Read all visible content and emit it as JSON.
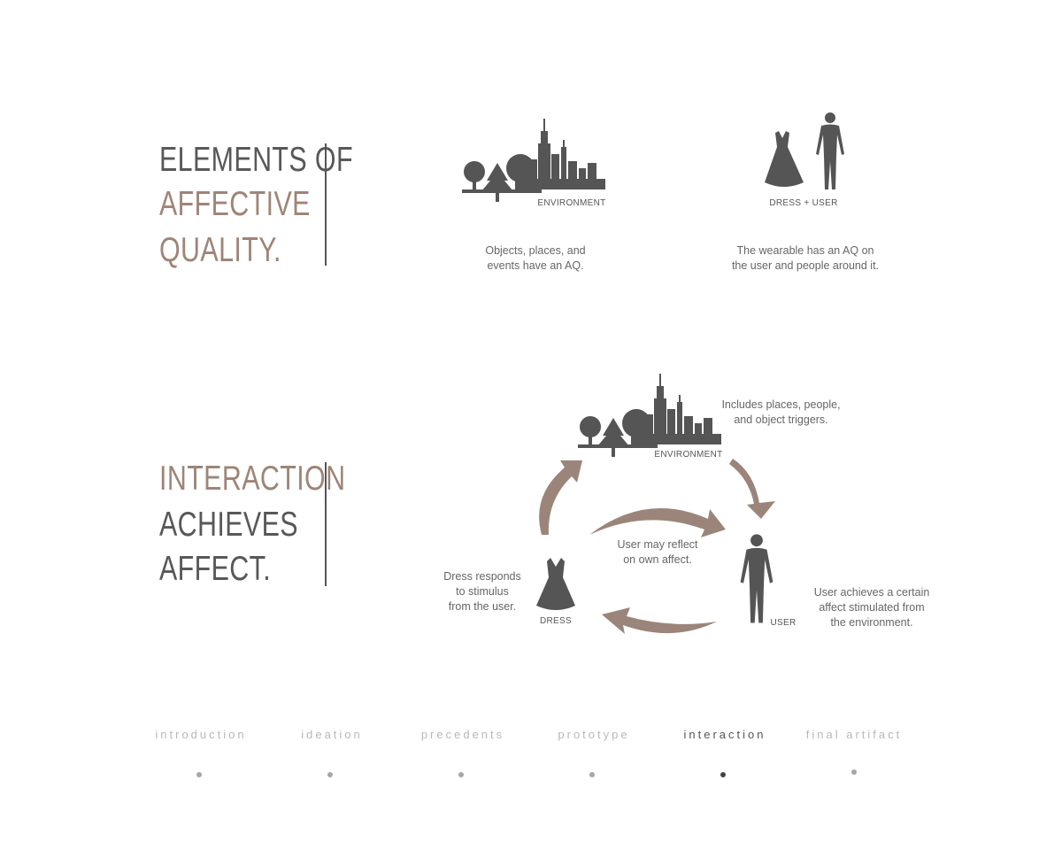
{
  "section1": {
    "heading": [
      "ELEMENTS OF",
      "AFFECTIVE",
      "QUALITY."
    ],
    "environment_caption": "ENVIRONMENT",
    "environment_text": "Objects, places, and\nevents have an AQ.",
    "dress_user_caption": "DRESS + USER",
    "dress_user_text": "The wearable has an AQ on\nthe user and people around it."
  },
  "section2": {
    "heading": [
      "INTERACTION",
      "ACHIEVES",
      "AFFECT."
    ],
    "environment_caption": "ENVIRONMENT",
    "environment_note": "Includes places, people,\nand object triggers.",
    "center_note": "User may reflect\non own affect.",
    "dress_caption": "DRESS",
    "dress_note": "Dress responds\nto stimulus\nfrom the user.",
    "user_caption": "USER",
    "user_note": "User achieves a certain\naffect stimulated from\nthe environment."
  },
  "nav": {
    "items": [
      {
        "label": "introduction",
        "active": false
      },
      {
        "label": "ideation",
        "active": false
      },
      {
        "label": "precedents",
        "active": false
      },
      {
        "label": "prototype",
        "active": false
      },
      {
        "label": "interaction",
        "active": true
      },
      {
        "label": "final artifact",
        "active": false
      }
    ]
  },
  "colors": {
    "accent_brown": "#9e8577",
    "arrow_brown": "#9b857a",
    "icon_gray": "#555555",
    "text_dark": "#585858"
  }
}
